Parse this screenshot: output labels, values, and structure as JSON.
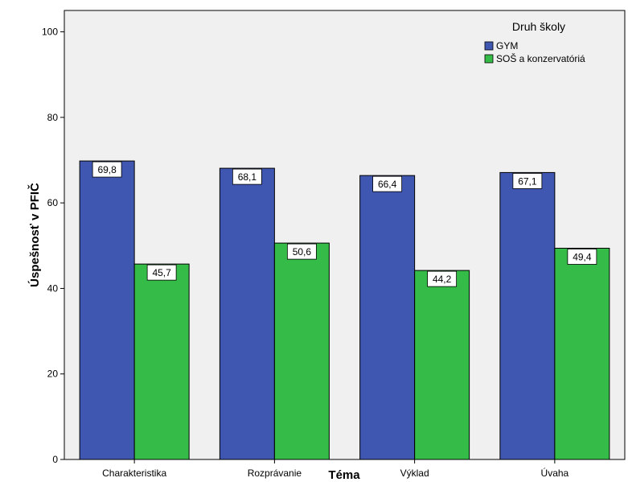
{
  "chart_data": {
    "type": "bar",
    "categories": [
      "Charakteristika",
      "Rozprávanie",
      "Výklad",
      "Úvaha"
    ],
    "series": [
      {
        "name": "GYM",
        "values": [
          69.8,
          68.1,
          66.4,
          67.1
        ],
        "labels": [
          "69,8",
          "68,1",
          "66,4",
          "67,1"
        ],
        "color": "#3f57b0"
      },
      {
        "name": "SOŠ a konzervatóriá",
        "values": [
          45.7,
          50.6,
          44.2,
          49.4
        ],
        "labels": [
          "45,7",
          "50,6",
          "44,2",
          "49,4"
        ],
        "color": "#35bb47"
      }
    ],
    "xlabel": "Téma",
    "ylabel": "Úspešnosť v PFIČ",
    "ylim": [
      0,
      105
    ],
    "yticks": [
      0,
      20,
      40,
      60,
      80,
      100
    ],
    "legend": {
      "title": "Druh školy",
      "position": "top-right"
    },
    "plot_background": "#f0f0f0",
    "grid": false
  }
}
